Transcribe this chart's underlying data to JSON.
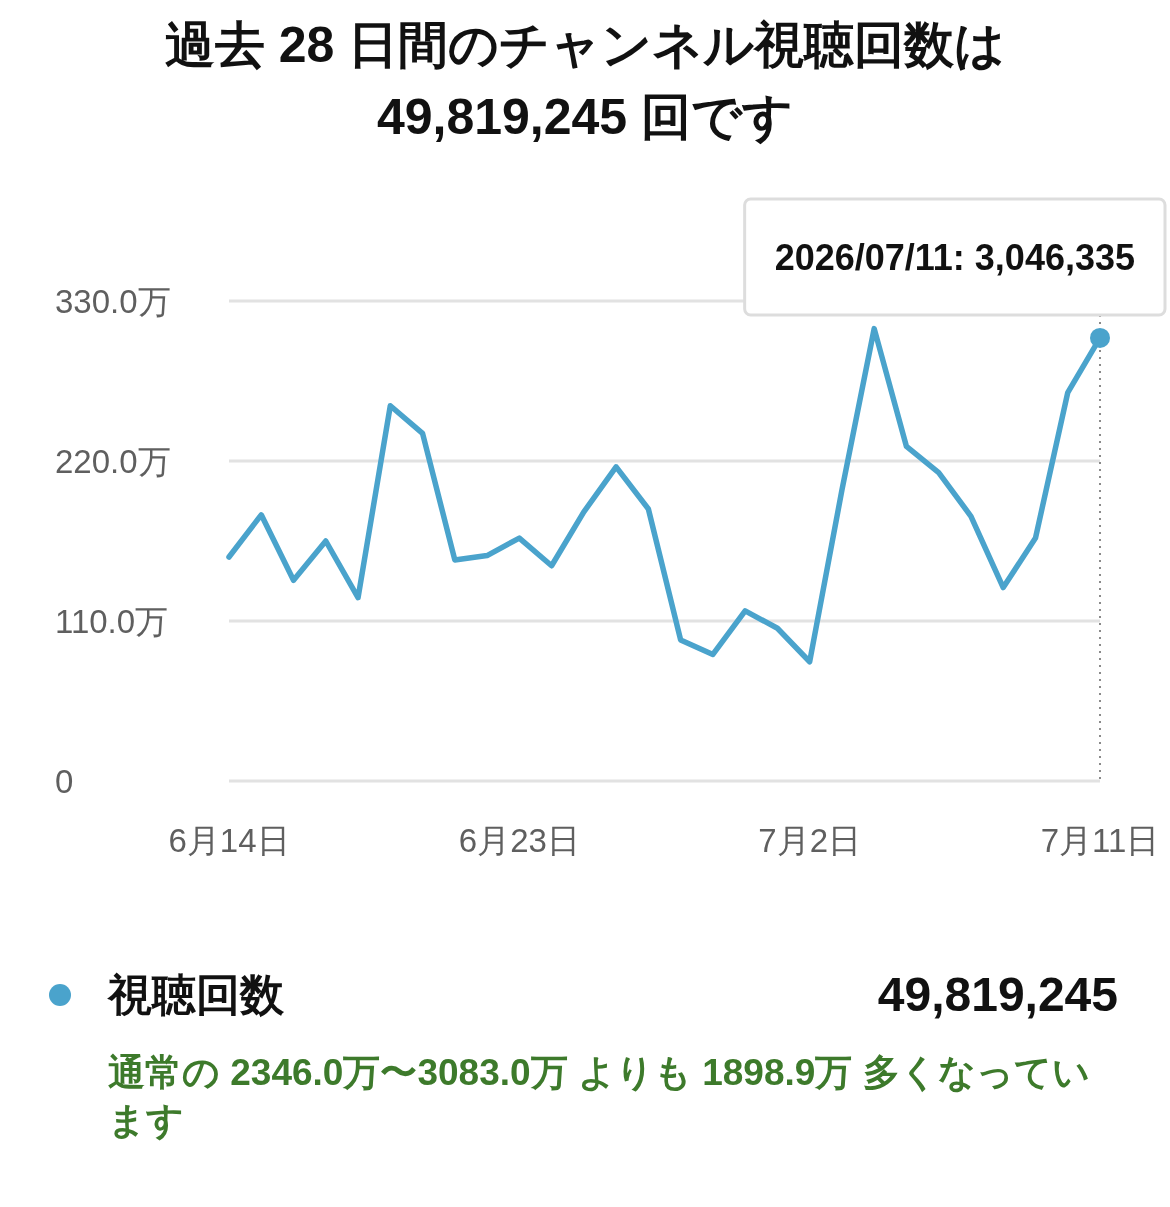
{
  "chart_data": {
    "type": "line",
    "title": "過去 28 日間のチャンネル視聴回数は 49,819,245 回です",
    "x": [
      "2026-06-14",
      "2026-06-15",
      "2026-06-16",
      "2026-06-17",
      "2026-06-18",
      "2026-06-19",
      "2026-06-20",
      "2026-06-21",
      "2026-06-22",
      "2026-06-23",
      "2026-06-24",
      "2026-06-25",
      "2026-06-26",
      "2026-06-27",
      "2026-06-28",
      "2026-06-29",
      "2026-06-30",
      "2026-07-01",
      "2026-07-02",
      "2026-07-03",
      "2026-07-04",
      "2026-07-05",
      "2026-07-06",
      "2026-07-07",
      "2026-07-08",
      "2026-07-09",
      "2026-07-10",
      "2026-07-11"
    ],
    "series": [
      {
        "name": "視聴回数",
        "color": "#4aa3cc",
        "values": [
          154,
          183,
          138,
          165,
          126,
          258,
          239,
          152,
          155,
          167,
          148,
          185,
          216,
          187,
          97,
          87,
          117,
          105,
          82,
          200,
          311,
          230,
          212,
          182,
          133,
          167,
          267,
          304.6335
        ]
      }
    ],
    "xlim": [
      "2026-06-14",
      "2026-07-11"
    ],
    "xticks": [
      {
        "value": "2026-06-14",
        "label": "6月14日"
      },
      {
        "value": "2026-06-23",
        "label": "6月23日"
      },
      {
        "value": "2026-07-02",
        "label": "7月2日"
      },
      {
        "value": "2026-07-11",
        "label": "7月11日"
      }
    ],
    "ylim": [
      0,
      330
    ],
    "yticks": [
      0,
      {
        "value": 110,
        "label": "110.0万"
      },
      {
        "value": 220,
        "label": "220.0万"
      },
      {
        "value": 330,
        "label": "330.0万"
      }
    ],
    "grid": "y",
    "legend": "bottom",
    "ref_lines": [
      {
        "axis": "x",
        "value": "2026-07-11",
        "color": "#8a8a8a",
        "line_style": "dotted"
      }
    ],
    "annotations": [
      {
        "text": "2026/07/11: 3,046,335",
        "x": "2026-07-11",
        "y": 304.6335
      },
      "49,819,245",
      "通常の 2346.0万〜3083.0万 よりも 1898.9万 多くなっています"
    ]
  }
}
